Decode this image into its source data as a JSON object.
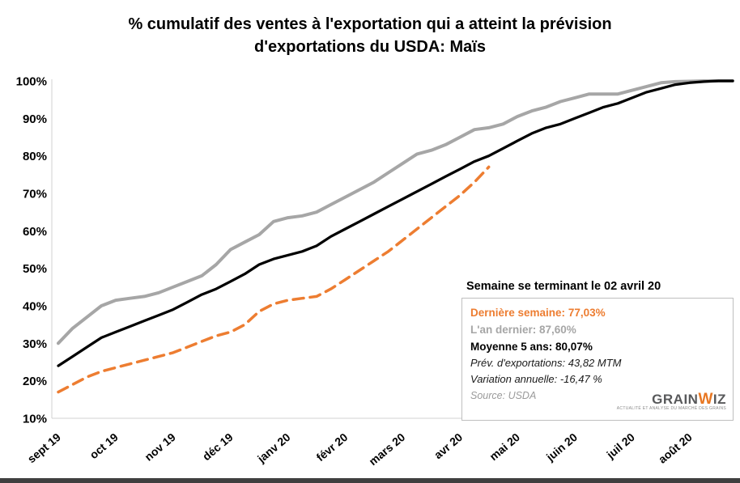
{
  "title": {
    "line1": "% cumulatif des ventes à l'exportation qui a atteint la prévision",
    "line2": "d'exportations du USDA: Maïs"
  },
  "chart_data": {
    "type": "line",
    "title": "% cumulatif des ventes à l'exportation qui a atteint la prévision d'exportations du USDA: Maïs",
    "xlabel": "",
    "ylabel": "",
    "ylim": [
      10,
      100
    ],
    "grid": false,
    "x_tick_labels": [
      "sept 19",
      "oct 19",
      "nov 19",
      "déc 19",
      "janv 20",
      "févr 20",
      "mars 20",
      "avr 20",
      "mai 20",
      "juin 20",
      "juil 20",
      "août 20"
    ],
    "y_tick_labels": [
      "10%",
      "20%",
      "30%",
      "40%",
      "50%",
      "60%",
      "70%",
      "80%",
      "90%",
      "100%"
    ],
    "x_unit": "semaines (4 par mois)",
    "series": [
      {
        "name": "L'an dernier",
        "color": "#A6A6A6",
        "style": "solid",
        "width": 4,
        "values": [
          30,
          34,
          37,
          40,
          41.5,
          42,
          42.5,
          43.5,
          45,
          46.5,
          48,
          51,
          55,
          57,
          59,
          62.5,
          63.5,
          64,
          65,
          67,
          69,
          71,
          73,
          75.5,
          78,
          80.5,
          81.5,
          83,
          85,
          87,
          87.5,
          88.5,
          90.5,
          92,
          93,
          94.5,
          95.5,
          96.5,
          96.5,
          96.5,
          97.5,
          98.5,
          99.5,
          99.8,
          99.9,
          100,
          100,
          100
        ]
      },
      {
        "name": "Moyenne 5 ans",
        "color": "#000000",
        "style": "solid",
        "width": 3.25,
        "values": [
          24,
          26.5,
          29,
          31.5,
          33,
          34.5,
          36,
          37.5,
          39,
          41,
          43,
          44.5,
          46.5,
          48.5,
          51,
          52.5,
          53.5,
          54.5,
          56,
          58.5,
          60.5,
          62.5,
          64.5,
          66.5,
          68.5,
          70.5,
          72.5,
          74.5,
          76.5,
          78.5,
          80,
          82,
          84,
          86,
          87.5,
          88.5,
          90,
          91.5,
          93,
          94,
          95.5,
          97,
          98,
          99,
          99.5,
          99.8,
          100,
          100
        ]
      },
      {
        "name": "Dernière semaine",
        "color": "#ED7D31",
        "style": "dashed",
        "width": 3.5,
        "values": [
          17,
          19,
          21,
          22.5,
          23.5,
          24.5,
          25.5,
          26.5,
          27.5,
          29,
          30.5,
          32,
          33,
          35,
          38.5,
          40.5,
          41.5,
          42,
          42.5,
          44.5,
          47,
          49.5,
          52,
          54.5,
          57.5,
          60.5,
          63.5,
          66.5,
          69.5,
          73,
          77.03
        ]
      }
    ]
  },
  "annotation": {
    "header": "Semaine se terminant le 02 avril 20",
    "rows": [
      {
        "label": "Dernière semaine:",
        "value": " 77,03%"
      },
      {
        "label": "L'an dernier:",
        "value": " 87,60%"
      },
      {
        "label": "Moyenne 5 ans:",
        "value": " 80,07%"
      },
      {
        "label": "Prév. d'exportations:",
        "value": "  43,82  MTM"
      },
      {
        "label": "Variation  annuelle:",
        "value": "  -16,47 %"
      },
      {
        "label": "Source:",
        "value": "  USDA"
      }
    ]
  },
  "logo": {
    "part1": "GRAIN",
    "part2": "W",
    "part3": "IZ",
    "tagline": "ACTUALITÉ ET ANALYSE DU MARCHÉ DES GRAINS"
  },
  "colors": {
    "orange": "#ED7D31",
    "gray": "#A6A6A6",
    "black": "#000000",
    "axis": "#d0d0d0"
  }
}
